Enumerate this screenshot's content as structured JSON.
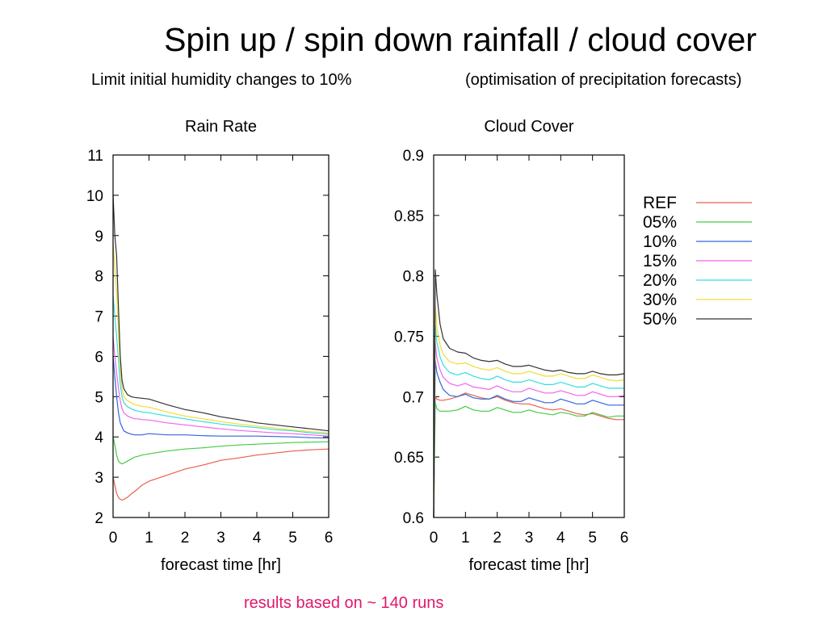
{
  "slide": {
    "title": "Spin up / spin down rainfall / cloud cover",
    "subtitle_left": "Limit initial humidity changes to 10%",
    "subtitle_right": "(optimisation of precipitation forecasts)",
    "footnote": "results based on  ~ 140 runs",
    "footnote_color": "#e0186c"
  },
  "legend": [
    {
      "name": "REF",
      "color": "#e8604c"
    },
    {
      "name": "05%",
      "color": "#44cc44"
    },
    {
      "name": "10%",
      "color": "#3366dd"
    },
    {
      "name": "15%",
      "color": "#ee66ee"
    },
    {
      "name": "20%",
      "color": "#33dddd"
    },
    {
      "name": "30%",
      "color": "#eedd33"
    },
    {
      "name": "50%",
      "color": "#333333"
    }
  ],
  "chart_data": [
    {
      "type": "line",
      "title": "Rain Rate",
      "xlabel": "forecast time [hr]",
      "ylabel": "",
      "xlim": [
        0,
        6
      ],
      "ylim": [
        2,
        11
      ],
      "xticks": [
        0,
        1,
        2,
        3,
        4,
        5,
        6
      ],
      "yticks": [
        2,
        3,
        4,
        5,
        6,
        7,
        8,
        9,
        10,
        11
      ],
      "grid": false,
      "legend": "right",
      "x": [
        0,
        0.05,
        0.1,
        0.15,
        0.2,
        0.25,
        0.3,
        0.4,
        0.5,
        0.6,
        0.7,
        0.8,
        1,
        1.5,
        2,
        2.5,
        3,
        3.5,
        4,
        4.5,
        5,
        5.5,
        6
      ],
      "series": [
        {
          "name": "REF",
          "values": [
            3.0,
            2.8,
            2.6,
            2.5,
            2.45,
            2.43,
            2.45,
            2.5,
            2.58,
            2.65,
            2.72,
            2.8,
            2.9,
            3.05,
            3.2,
            3.3,
            3.42,
            3.48,
            3.55,
            3.6,
            3.65,
            3.68,
            3.7
          ]
        },
        {
          "name": "05%",
          "values": [
            4.0,
            3.8,
            3.55,
            3.4,
            3.35,
            3.33,
            3.35,
            3.4,
            3.45,
            3.5,
            3.52,
            3.55,
            3.58,
            3.65,
            3.7,
            3.73,
            3.77,
            3.8,
            3.82,
            3.84,
            3.86,
            3.87,
            3.88
          ]
        },
        {
          "name": "10%",
          "values": [
            6.0,
            5.5,
            5.0,
            4.6,
            4.35,
            4.25,
            4.15,
            4.1,
            4.07,
            4.05,
            4.05,
            4.05,
            4.08,
            4.05,
            4.05,
            4.03,
            4.02,
            4.02,
            4.02,
            4.01,
            4.0,
            3.98,
            3.97
          ]
        },
        {
          "name": "15%",
          "values": [
            6.5,
            6.0,
            5.6,
            5.2,
            4.9,
            4.7,
            4.6,
            4.52,
            4.48,
            4.45,
            4.45,
            4.43,
            4.42,
            4.35,
            4.3,
            4.25,
            4.2,
            4.16,
            4.13,
            4.1,
            4.08,
            4.05,
            4.02
          ]
        },
        {
          "name": "20%",
          "values": [
            7.5,
            7.0,
            6.5,
            5.9,
            5.3,
            5.0,
            4.85,
            4.75,
            4.7,
            4.66,
            4.64,
            4.62,
            4.6,
            4.52,
            4.45,
            4.38,
            4.32,
            4.27,
            4.23,
            4.18,
            4.15,
            4.1,
            4.07
          ]
        },
        {
          "name": "30%",
          "values": [
            8.8,
            8.2,
            7.6,
            6.6,
            5.7,
            5.2,
            5.0,
            4.9,
            4.85,
            4.8,
            4.78,
            4.76,
            4.74,
            4.62,
            4.52,
            4.45,
            4.38,
            4.32,
            4.27,
            4.22,
            4.17,
            4.13,
            4.1
          ]
        },
        {
          "name": "50%",
          "values": [
            10.0,
            9.0,
            8.5,
            7.2,
            6.0,
            5.4,
            5.2,
            5.05,
            5.0,
            4.98,
            4.97,
            4.96,
            4.94,
            4.8,
            4.68,
            4.6,
            4.5,
            4.43,
            4.35,
            4.3,
            4.25,
            4.2,
            4.15
          ]
        }
      ]
    },
    {
      "type": "line",
      "title": "Cloud Cover",
      "xlabel": "forecast time [hr]",
      "ylabel": "",
      "xlim": [
        0,
        6
      ],
      "ylim": [
        0.6,
        0.9
      ],
      "xticks": [
        0,
        1,
        2,
        3,
        4,
        5,
        6
      ],
      "yticks": [
        0.6,
        0.65,
        0.7,
        0.75,
        0.8,
        0.85,
        0.9
      ],
      "grid": false,
      "legend": "right",
      "x": [
        0,
        0.05,
        0.1,
        0.2,
        0.3,
        0.5,
        0.75,
        1,
        1.25,
        1.5,
        1.75,
        2,
        2.25,
        2.5,
        2.75,
        3,
        3.25,
        3.5,
        3.75,
        4,
        4.25,
        4.5,
        4.75,
        5,
        5.25,
        5.5,
        5.75,
        6
      ],
      "series": [
        {
          "name": "REF",
          "values": [
            0.6,
            0.7,
            0.698,
            0.697,
            0.697,
            0.698,
            0.7,
            0.703,
            0.701,
            0.699,
            0.698,
            0.7,
            0.697,
            0.695,
            0.694,
            0.694,
            0.692,
            0.69,
            0.689,
            0.69,
            0.688,
            0.686,
            0.685,
            0.686,
            0.684,
            0.682,
            0.681,
            0.681
          ]
        },
        {
          "name": "05%",
          "values": [
            0.6,
            0.695,
            0.69,
            0.688,
            0.688,
            0.688,
            0.689,
            0.692,
            0.689,
            0.688,
            0.688,
            0.691,
            0.689,
            0.687,
            0.687,
            0.689,
            0.687,
            0.686,
            0.685,
            0.687,
            0.686,
            0.684,
            0.684,
            0.687,
            0.685,
            0.683,
            0.684,
            0.684
          ]
        },
        {
          "name": "10%",
          "values": [
            0.6,
            0.73,
            0.72,
            0.712,
            0.706,
            0.701,
            0.7,
            0.702,
            0.699,
            0.698,
            0.698,
            0.701,
            0.698,
            0.696,
            0.696,
            0.699,
            0.697,
            0.695,
            0.695,
            0.698,
            0.696,
            0.694,
            0.694,
            0.697,
            0.695,
            0.693,
            0.693,
            0.693
          ]
        },
        {
          "name": "15%",
          "values": [
            0.6,
            0.745,
            0.732,
            0.722,
            0.716,
            0.711,
            0.709,
            0.711,
            0.708,
            0.707,
            0.706,
            0.709,
            0.706,
            0.704,
            0.704,
            0.707,
            0.705,
            0.703,
            0.703,
            0.705,
            0.703,
            0.701,
            0.701,
            0.704,
            0.702,
            0.7,
            0.7,
            0.701
          ]
        },
        {
          "name": "20%",
          "values": [
            0.6,
            0.76,
            0.745,
            0.733,
            0.726,
            0.72,
            0.718,
            0.72,
            0.717,
            0.715,
            0.714,
            0.717,
            0.714,
            0.712,
            0.712,
            0.714,
            0.712,
            0.71,
            0.71,
            0.712,
            0.71,
            0.708,
            0.708,
            0.711,
            0.709,
            0.707,
            0.707,
            0.707
          ]
        },
        {
          "name": "30%",
          "values": [
            0.6,
            0.775,
            0.757,
            0.743,
            0.735,
            0.729,
            0.727,
            0.728,
            0.725,
            0.723,
            0.722,
            0.724,
            0.721,
            0.719,
            0.719,
            0.721,
            0.719,
            0.717,
            0.717,
            0.719,
            0.717,
            0.715,
            0.715,
            0.718,
            0.716,
            0.714,
            0.713,
            0.714
          ]
        },
        {
          "name": "50%",
          "values": [
            0.6,
            0.805,
            0.785,
            0.76,
            0.748,
            0.74,
            0.737,
            0.736,
            0.732,
            0.73,
            0.729,
            0.73,
            0.727,
            0.725,
            0.725,
            0.726,
            0.724,
            0.722,
            0.721,
            0.722,
            0.72,
            0.719,
            0.719,
            0.721,
            0.719,
            0.718,
            0.718,
            0.719
          ]
        }
      ]
    }
  ]
}
